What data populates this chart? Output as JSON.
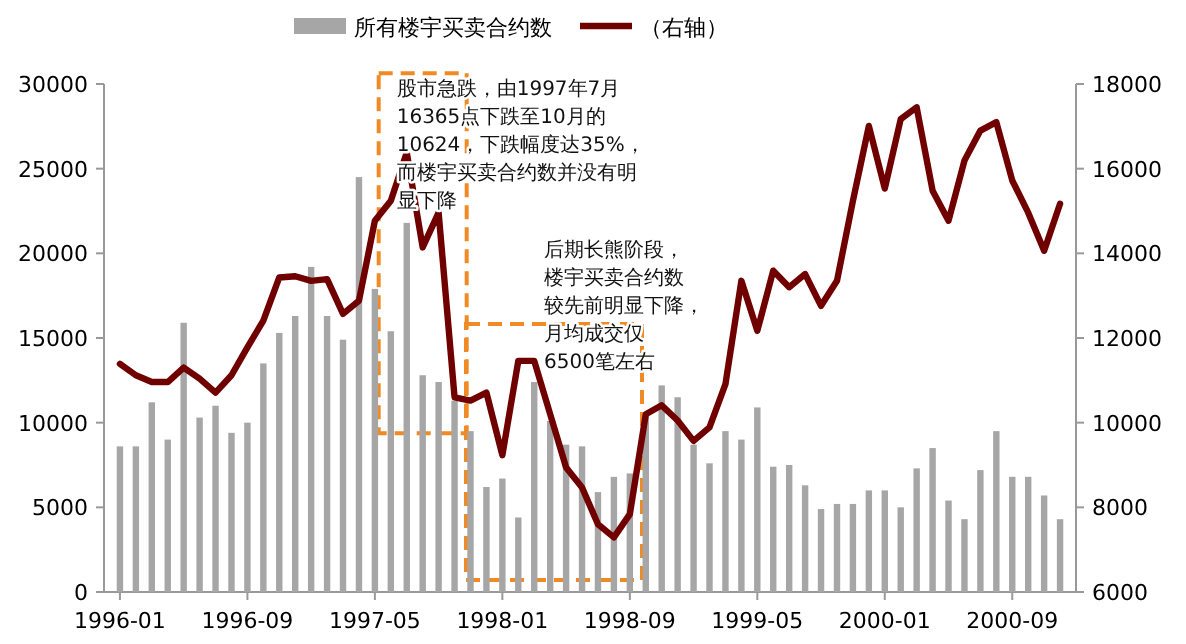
{
  "chart_data": {
    "type": "bar",
    "x": [
      "1996-01",
      "1996-02",
      "1996-03",
      "1996-04",
      "1996-05",
      "1996-06",
      "1996-07",
      "1996-08",
      "1996-09",
      "1996-10",
      "1996-11",
      "1996-12",
      "1997-01",
      "1997-02",
      "1997-03",
      "1997-04",
      "1997-05",
      "1997-06",
      "1997-07",
      "1997-08",
      "1997-09",
      "1997-10",
      "1997-11",
      "1997-12",
      "1998-01",
      "1998-02",
      "1998-03",
      "1998-04",
      "1998-05",
      "1998-06",
      "1998-07",
      "1998-08",
      "1998-09",
      "1998-10",
      "1998-11",
      "1998-12",
      "1999-01",
      "1999-02",
      "1999-03",
      "1999-04",
      "1999-05",
      "1999-06",
      "1999-07",
      "1999-08",
      "1999-09",
      "1999-10",
      "1999-11",
      "1999-12",
      "2000-01",
      "2000-02",
      "2000-03",
      "2000-04",
      "2000-05",
      "2000-06",
      "2000-07",
      "2000-08",
      "2000-09",
      "2000-10",
      "2000-11",
      "2000-12"
    ],
    "series": [
      {
        "name": "所有楼宇买卖合约数",
        "color": "#a6a6a6",
        "values": [
          8600,
          8600,
          11200,
          9000,
          15900,
          10300,
          11000,
          9400,
          10000,
          13500,
          15300,
          16300,
          19200,
          16300,
          14900,
          24500,
          17900,
          15400,
          21800,
          12800,
          12400,
          11300,
          9500,
          6200,
          6700,
          4400,
          12400,
          10100,
          8700,
          8600,
          5900,
          6800,
          7000,
          10500,
          12200,
          11500,
          8700,
          7600,
          9500,
          9000,
          10900,
          7400,
          7500,
          6300,
          4900,
          5200,
          5200,
          6000,
          6000,
          5000,
          7300,
          8500,
          5400,
          4300,
          7200,
          9500,
          6800,
          6800,
          5700,
          4300
        ]
      },
      {
        "name": "（右轴）",
        "color": "#700000",
        "type": "line",
        "axis": "y2",
        "values": [
          11390,
          11120,
          10960,
          10960,
          11300,
          11040,
          10710,
          11120,
          11780,
          12410,
          13430,
          13460,
          13350,
          13390,
          12570,
          12880,
          14770,
          15240,
          16380,
          14140,
          14960,
          10600,
          10520,
          10710,
          9230,
          11460,
          11460,
          10200,
          8940,
          8470,
          7600,
          7290,
          7840,
          10200,
          10410,
          10050,
          9570,
          9890,
          10910,
          13350,
          12170,
          13590,
          13200,
          13510,
          12760,
          13350,
          15240,
          17010,
          15530,
          17170,
          17450,
          15480,
          14770,
          16190,
          16900,
          17100,
          15720,
          14960,
          14060,
          15170
        ]
      }
    ],
    "xlim": [
      "1995-12",
      "2001-01"
    ],
    "xticks": [
      "1996-01",
      "1996-09",
      "1997-05",
      "1998-01",
      "1998-09",
      "1999-05",
      "2000-01",
      "2000-09"
    ],
    "ylim": [
      0,
      30000
    ],
    "yticks": [
      0,
      5000,
      10000,
      15000,
      20000,
      25000,
      30000
    ],
    "y2lim": [
      6000,
      18000
    ],
    "y2ticks": [
      6000,
      8000,
      10000,
      12000,
      14000,
      16000,
      18000
    ],
    "annotations": [
      {
        "text": "股市急跌，由1997年7月16365点下跌至10月的10624，下跌幅度达35%，而楼宇买卖合约数并没有明显下降",
        "x": "1997-08",
        "y": 20000
      },
      "后期长熊阶段，楼宇买卖合约数较先前明显下降，月均成交仅6500笔左右"
    ],
    "legend": "top",
    "grid": false
  }
}
